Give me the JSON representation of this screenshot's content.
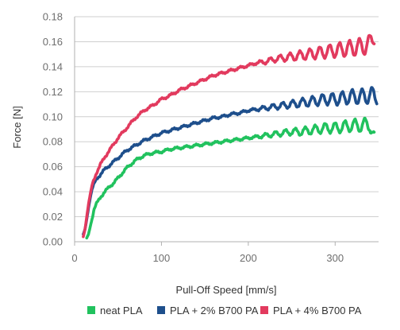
{
  "chart_data": {
    "type": "line",
    "title": "",
    "xlabel": "Pull-Off Speed [mm/s]",
    "ylabel": "Force [N]",
    "xlim": [
      0,
      350
    ],
    "ylim": [
      0,
      0.18
    ],
    "x_ticks": [
      0,
      100,
      200,
      300
    ],
    "x_tick_labels": [
      "0",
      "100",
      "200",
      "300"
    ],
    "y_ticks": [
      0,
      0.02,
      0.04,
      0.06,
      0.08,
      0.1,
      0.12,
      0.14,
      0.16,
      0.18
    ],
    "y_tick_labels": [
      "0.00",
      "0.02",
      "0.04",
      "0.06",
      "0.08",
      "0.10",
      "0.12",
      "0.14",
      "0.16",
      "0.18"
    ],
    "grid": "horizontal",
    "legend_position": "bottom",
    "series": [
      {
        "name": "neat PLA",
        "color": "#21c25e",
        "points": [
          [
            14,
            0.003
          ],
          [
            16,
            0.006
          ],
          [
            18,
            0.012
          ],
          [
            20,
            0.018
          ],
          [
            22,
            0.025
          ],
          [
            25,
            0.03
          ],
          [
            30,
            0.036
          ],
          [
            35,
            0.04
          ],
          [
            40,
            0.044
          ],
          [
            45,
            0.047
          ],
          [
            50,
            0.051
          ],
          [
            55,
            0.055
          ],
          [
            60,
            0.059
          ],
          [
            65,
            0.062
          ],
          [
            70,
            0.065
          ],
          [
            75,
            0.067
          ],
          [
            80,
            0.069
          ],
          [
            90,
            0.071
          ],
          [
            100,
            0.072
          ],
          [
            110,
            0.074
          ],
          [
            120,
            0.075
          ],
          [
            130,
            0.076
          ],
          [
            140,
            0.077
          ],
          [
            150,
            0.078
          ],
          [
            160,
            0.079
          ],
          [
            170,
            0.08
          ],
          [
            180,
            0.081
          ],
          [
            190,
            0.082
          ],
          [
            200,
            0.083
          ],
          [
            210,
            0.084
          ],
          [
            220,
            0.085
          ],
          [
            230,
            0.086
          ],
          [
            240,
            0.087
          ],
          [
            250,
            0.088
          ],
          [
            260,
            0.088
          ],
          [
            270,
            0.089
          ],
          [
            280,
            0.09
          ],
          [
            290,
            0.091
          ],
          [
            300,
            0.091
          ],
          [
            310,
            0.092
          ],
          [
            320,
            0.093
          ],
          [
            330,
            0.093
          ],
          [
            340,
            0.094
          ],
          [
            345,
            0.082
          ]
        ]
      },
      {
        "name": "PLA + 2% B700 PA",
        "color": "#1e4f8c",
        "points": [
          [
            10,
            0.006
          ],
          [
            12,
            0.01
          ],
          [
            14,
            0.018
          ],
          [
            16,
            0.027
          ],
          [
            18,
            0.035
          ],
          [
            20,
            0.042
          ],
          [
            25,
            0.05
          ],
          [
            30,
            0.054
          ],
          [
            35,
            0.058
          ],
          [
            40,
            0.061
          ],
          [
            45,
            0.064
          ],
          [
            50,
            0.067
          ],
          [
            55,
            0.07
          ],
          [
            60,
            0.073
          ],
          [
            65,
            0.075
          ],
          [
            70,
            0.077
          ],
          [
            75,
            0.079
          ],
          [
            80,
            0.081
          ],
          [
            90,
            0.084
          ],
          [
            100,
            0.087
          ],
          [
            110,
            0.089
          ],
          [
            120,
            0.091
          ],
          [
            130,
            0.093
          ],
          [
            140,
            0.095
          ],
          [
            150,
            0.097
          ],
          [
            160,
            0.099
          ],
          [
            170,
            0.1
          ],
          [
            180,
            0.102
          ],
          [
            190,
            0.103
          ],
          [
            200,
            0.105
          ],
          [
            210,
            0.106
          ],
          [
            220,
            0.107
          ],
          [
            230,
            0.108
          ],
          [
            240,
            0.109
          ],
          [
            250,
            0.11
          ],
          [
            260,
            0.111
          ],
          [
            270,
            0.112
          ],
          [
            280,
            0.113
          ],
          [
            290,
            0.114
          ],
          [
            300,
            0.114
          ],
          [
            310,
            0.115
          ],
          [
            320,
            0.116
          ],
          [
            330,
            0.116
          ],
          [
            340,
            0.117
          ],
          [
            348,
            0.117
          ]
        ]
      },
      {
        "name": "PLA + 4% B700 PA",
        "color": "#e23a5e",
        "points": [
          [
            10,
            0.004
          ],
          [
            12,
            0.01
          ],
          [
            14,
            0.02
          ],
          [
            16,
            0.03
          ],
          [
            18,
            0.038
          ],
          [
            20,
            0.045
          ],
          [
            25,
            0.055
          ],
          [
            30,
            0.062
          ],
          [
            35,
            0.068
          ],
          [
            40,
            0.073
          ],
          [
            45,
            0.078
          ],
          [
            50,
            0.083
          ],
          [
            55,
            0.087
          ],
          [
            60,
            0.091
          ],
          [
            65,
            0.095
          ],
          [
            70,
            0.099
          ],
          [
            75,
            0.102
          ],
          [
            80,
            0.105
          ],
          [
            90,
            0.109
          ],
          [
            100,
            0.114
          ],
          [
            110,
            0.117
          ],
          [
            120,
            0.121
          ],
          [
            130,
            0.124
          ],
          [
            140,
            0.127
          ],
          [
            150,
            0.13
          ],
          [
            160,
            0.133
          ],
          [
            170,
            0.135
          ],
          [
            180,
            0.137
          ],
          [
            190,
            0.139
          ],
          [
            200,
            0.141
          ],
          [
            210,
            0.143
          ],
          [
            220,
            0.144
          ],
          [
            230,
            0.146
          ],
          [
            240,
            0.147
          ],
          [
            250,
            0.148
          ],
          [
            260,
            0.149
          ],
          [
            270,
            0.15
          ],
          [
            280,
            0.151
          ],
          [
            290,
            0.152
          ],
          [
            300,
            0.153
          ],
          [
            310,
            0.154
          ],
          [
            320,
            0.155
          ],
          [
            330,
            0.156
          ],
          [
            340,
            0.158
          ],
          [
            345,
            0.166
          ]
        ]
      }
    ]
  }
}
